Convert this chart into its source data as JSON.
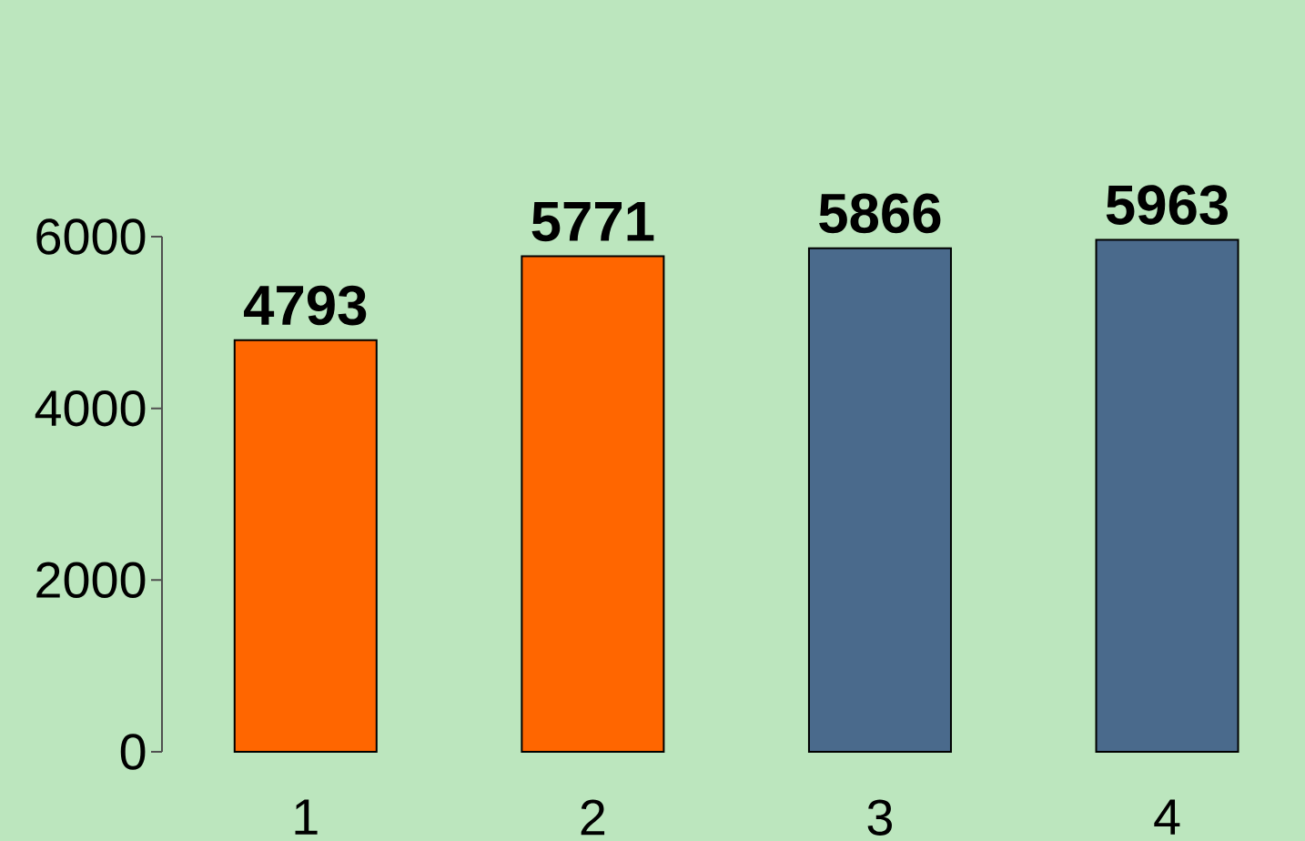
{
  "chart_data": {
    "type": "bar",
    "categories": [
      "1",
      "2",
      "3",
      "4"
    ],
    "values": [
      4793,
      5771,
      5866,
      5963
    ],
    "colors": [
      "#ff6600",
      "#ff6600",
      "#4a6a8c",
      "#4a6a8c"
    ],
    "ylim": [
      0,
      6000
    ],
    "yticks": [
      0,
      2000,
      4000,
      6000
    ],
    "data_labels": true
  }
}
